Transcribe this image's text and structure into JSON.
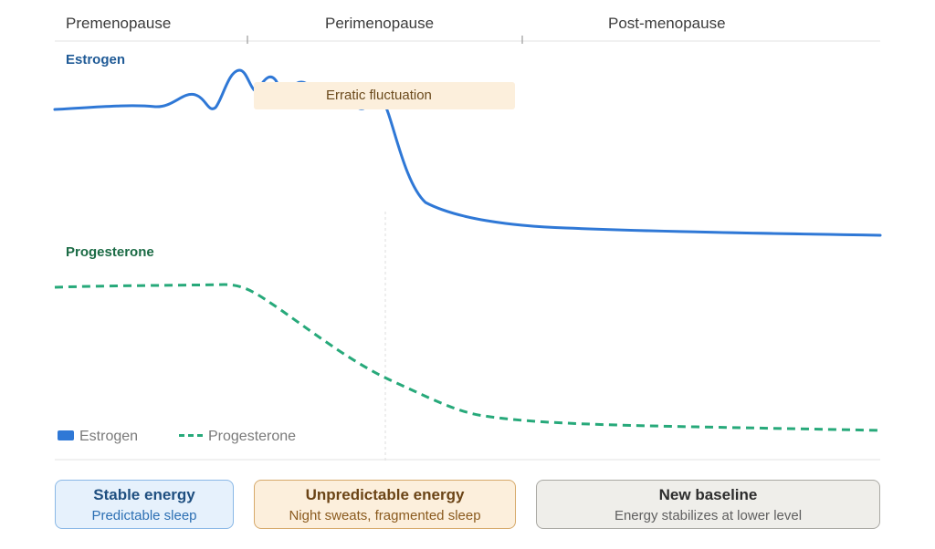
{
  "phases": [
    "Premenopause",
    "Perimenopause",
    "Post-menopause"
  ],
  "hormones": {
    "estrogen": "Estrogen",
    "progesterone": "Progesterone"
  },
  "annotation": "Erratic fluctuation",
  "legend": {
    "estrogen": "Estrogen",
    "progesterone": "Progesterone"
  },
  "cards": [
    {
      "title": "Stable energy",
      "subtitle": "Predictable sleep"
    },
    {
      "title": "Unpredictable energy",
      "subtitle": "Night sweats, fragmented sleep"
    },
    {
      "title": "New baseline",
      "subtitle": "Energy stabilizes at lower level"
    }
  ],
  "colors": {
    "estrogen": "#2f78d6",
    "progesterone": "#27a97a",
    "stable": "#e6f1fc",
    "unpredictable": "#fcefdc",
    "baseline": "#efeeea"
  }
}
